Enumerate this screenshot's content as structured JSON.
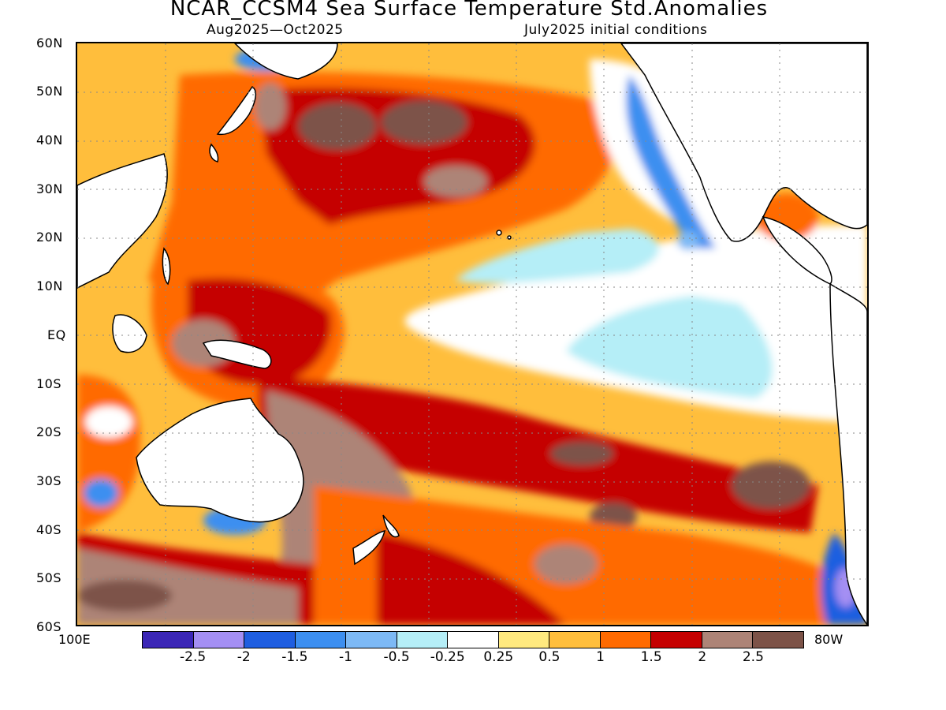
{
  "header": {
    "title": "NCAR_CCSM4 Sea Surface Temperature Std.Anomalies",
    "period": "Aug2025—Oct2025",
    "init": "July2025 initial conditions"
  },
  "axes": {
    "lat_labels": [
      "60N",
      "50N",
      "40N",
      "30N",
      "20N",
      "10N",
      "EQ",
      "10S",
      "20S",
      "30S",
      "40S",
      "50S",
      "60S"
    ],
    "lon_left": "100E",
    "lon_right": "80W",
    "lat_range": [
      -60,
      60
    ],
    "grid": "dotted"
  },
  "colorbar": {
    "colors": [
      "#3b26b6",
      "#a48ff3",
      "#1f5ee0",
      "#3d8ff0",
      "#7db9f5",
      "#b5eef7",
      "#ffffff",
      "#ffe97f",
      "#ffbe3c",
      "#ff6a00",
      "#c50000",
      "#ad8477",
      "#7d5348"
    ],
    "tick_labels": [
      "-2.5",
      "-2",
      "-1.5",
      "-1",
      "-0.5",
      "-0.25",
      "0.25",
      "0.5",
      "1",
      "1.5",
      "2",
      "2.5"
    ]
  },
  "map": {
    "fields": [
      {
        "name": "north-pacific-warm-anomaly",
        "color": "#ff6a00"
      },
      {
        "name": "north-pacific-strong-anomaly",
        "color": "#c50000"
      },
      {
        "name": "north-pacific-extreme-anomaly",
        "color": "#7d5348"
      },
      {
        "name": "eastern-pacific-cold-tongue",
        "color": "#ffffff"
      },
      {
        "name": "eastern-pacific-cool-anomaly",
        "color": "#b5eef7"
      },
      {
        "name": "california-coast-cold-anomaly",
        "color": "#3d8ff0"
      },
      {
        "name": "south-pacific-warm-band",
        "color": "#c50000"
      },
      {
        "name": "southern-ocean-extreme-anomaly",
        "color": "#7d5348"
      },
      {
        "name": "chile-coast-cold-anomaly",
        "color": "#1f5ee0"
      }
    ],
    "land_color": "#ffffff"
  }
}
